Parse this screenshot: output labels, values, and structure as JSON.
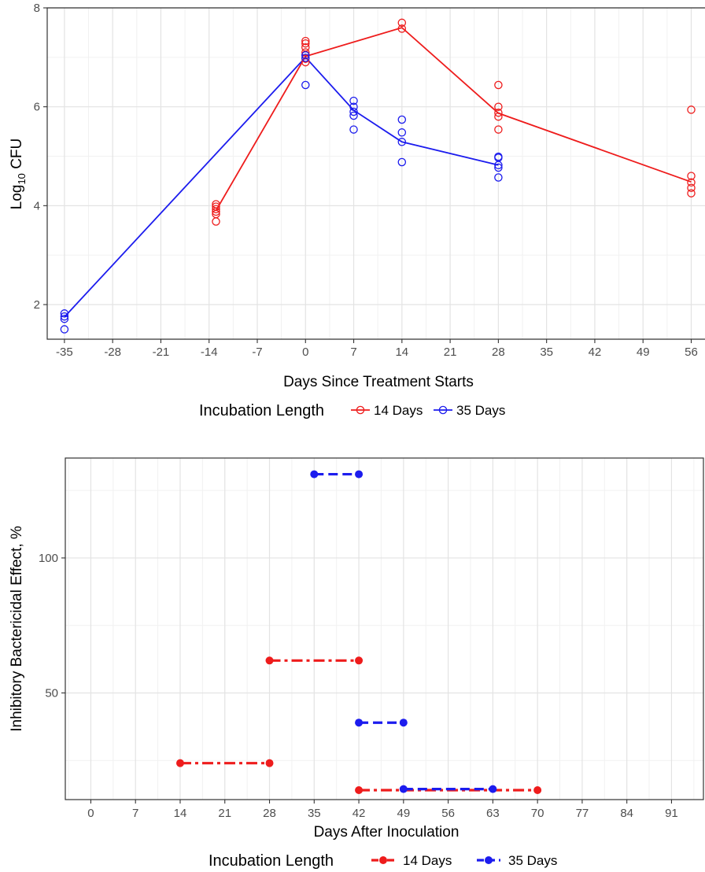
{
  "colors": {
    "red": "#ee1c1c",
    "blue": "#1c1cee",
    "grid_major": "#e3e3e3",
    "grid_minor": "#f1f1f1",
    "panel_border": "#333333"
  },
  "chart_data": [
    {
      "type": "line",
      "xlabel": "Days Since Treatment Starts",
      "ylabel_main": "Log",
      "ylabel_sub": "10",
      "ylabel_tail": " CFU",
      "xlim": [
        -37.5,
        58
      ],
      "ylim": [
        1.3,
        8
      ],
      "x_ticks": [
        -35,
        -28,
        -21,
        -14,
        -7,
        0,
        7,
        14,
        21,
        28,
        35,
        42,
        49,
        56
      ],
      "x_tick_labels": [
        "-35",
        "-28",
        "-21",
        "-14",
        "-7",
        "0",
        "7",
        "14",
        "21",
        "28",
        "35",
        "42",
        "49",
        "56"
      ],
      "y_ticks": [
        2,
        4,
        6,
        8
      ],
      "y_tick_labels": [
        "2",
        "4",
        "6",
        "8"
      ],
      "grid": true,
      "legend": {
        "title": "Incubation Length",
        "position": "bottom",
        "entries": [
          "14 Days",
          "35 Days"
        ]
      },
      "series": [
        {
          "name": "14 Days",
          "color": "#ee1c1c",
          "mean_line": [
            [
              -13,
              3.9
            ],
            [
              0,
              7.02
            ],
            [
              14,
              7.6
            ],
            [
              28,
              5.87
            ],
            [
              56,
              4.48
            ]
          ],
          "points": [
            [
              -13,
              4.03
            ],
            [
              -13,
              3.98
            ],
            [
              -13,
              3.93
            ],
            [
              -13,
              3.88
            ],
            [
              -13,
              3.83
            ],
            [
              -13,
              3.68
            ],
            [
              0,
              7.33
            ],
            [
              0,
              7.28
            ],
            [
              0,
              7.2
            ],
            [
              0,
              7.1
            ],
            [
              0,
              7.05
            ],
            [
              0,
              6.97
            ],
            [
              0,
              6.9
            ],
            [
              14,
              7.7
            ],
            [
              14,
              7.58
            ],
            [
              28,
              6.44
            ],
            [
              28,
              6.0
            ],
            [
              28,
              5.88
            ],
            [
              28,
              5.8
            ],
            [
              28,
              5.54
            ],
            [
              56,
              5.94
            ],
            [
              56,
              4.6
            ],
            [
              56,
              4.47
            ],
            [
              56,
              4.36
            ],
            [
              56,
              4.25
            ]
          ]
        },
        {
          "name": "35 Days",
          "color": "#1c1cee",
          "mean_line": [
            [
              -35,
              1.75
            ],
            [
              0,
              7.0
            ],
            [
              7,
              5.93
            ],
            [
              14,
              5.29
            ],
            [
              28,
              4.82
            ]
          ],
          "points": [
            [
              -35,
              1.82
            ],
            [
              -35,
              1.76
            ],
            [
              -35,
              1.71
            ],
            [
              -35,
              1.5
            ],
            [
              0,
              7.04
            ],
            [
              0,
              6.99
            ],
            [
              0,
              6.44
            ],
            [
              7,
              6.12
            ],
            [
              7,
              6.0
            ],
            [
              7,
              5.9
            ],
            [
              7,
              5.82
            ],
            [
              7,
              5.54
            ],
            [
              14,
              5.74
            ],
            [
              14,
              5.48
            ],
            [
              14,
              5.29
            ],
            [
              14,
              4.88
            ],
            [
              28,
              4.99
            ],
            [
              28,
              4.97
            ],
            [
              28,
              4.82
            ],
            [
              28,
              4.77
            ],
            [
              28,
              4.57
            ]
          ]
        }
      ]
    },
    {
      "type": "line",
      "xlabel": "Days After Inoculation",
      "ylabel": "Inhibitory Bactericidal Effect, %",
      "xlim": [
        -4,
        96
      ],
      "ylim": [
        10.5,
        137
      ],
      "x_ticks": [
        0,
        7,
        14,
        21,
        28,
        35,
        42,
        49,
        56,
        63,
        70,
        77,
        84,
        91
      ],
      "x_tick_labels": [
        "0",
        "7",
        "14",
        "21",
        "28",
        "35",
        "42",
        "49",
        "56",
        "63",
        "70",
        "77",
        "84",
        "91"
      ],
      "y_ticks": [
        50,
        100
      ],
      "y_tick_labels": [
        "50",
        "100"
      ],
      "grid": true,
      "legend": {
        "title": "Incubation Length",
        "position": "bottom",
        "entries": [
          "14 Days",
          "35 Days"
        ]
      },
      "series": [
        {
          "name": "14 Days",
          "color": "#ee1c1c",
          "segments": [
            [
              [
                28,
                62
              ],
              [
                42,
                62
              ]
            ],
            [
              [
                14,
                24
              ],
              [
                28,
                24
              ]
            ],
            [
              [
                42,
                14
              ],
              [
                70,
                14
              ]
            ]
          ]
        },
        {
          "name": "35 Days",
          "color": "#1c1cee",
          "segments": [
            [
              [
                35,
                131
              ],
              [
                42,
                131
              ]
            ],
            [
              [
                42,
                39
              ],
              [
                49,
                39
              ]
            ],
            [
              [
                49,
                14.4
              ],
              [
                63,
                14.4
              ]
            ]
          ]
        }
      ]
    }
  ]
}
